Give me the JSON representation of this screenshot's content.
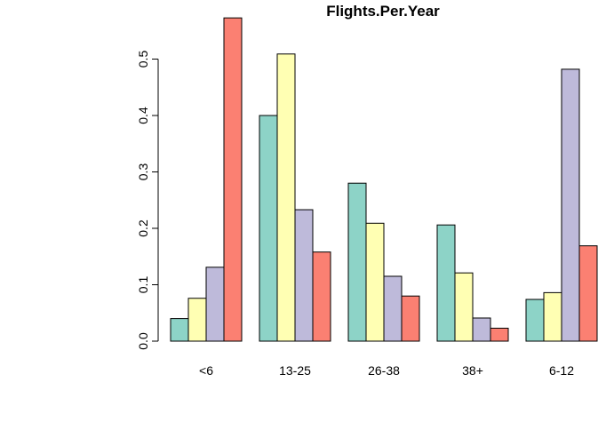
{
  "chart_data": {
    "type": "bar",
    "mode": "grouped",
    "title": "Flights.Per.Year",
    "xlabel": "",
    "ylabel": "",
    "ylim": [
      0,
      0.58
    ],
    "yticks": [
      0.0,
      0.1,
      0.2,
      0.3,
      0.4,
      0.5
    ],
    "ytick_labels": [
      "0.0",
      "0.1",
      "0.2",
      "0.3",
      "0.4",
      "0.5"
    ],
    "categories": [
      "<6",
      "13-25",
      "26-38",
      "38+",
      "6-12"
    ],
    "series": [
      {
        "color": "#8DD3C7",
        "values": [
          0.04,
          0.4,
          0.28,
          0.206,
          0.074
        ]
      },
      {
        "color": "#FFFFB3",
        "values": [
          0.076,
          0.509,
          0.209,
          0.121,
          0.086
        ]
      },
      {
        "color": "#BEBADA",
        "values": [
          0.131,
          0.233,
          0.115,
          0.041,
          0.482
        ]
      },
      {
        "color": "#FB8072",
        "values": [
          0.573,
          0.158,
          0.08,
          0.023,
          0.169
        ]
      }
    ],
    "grid": false,
    "legend": "none"
  }
}
